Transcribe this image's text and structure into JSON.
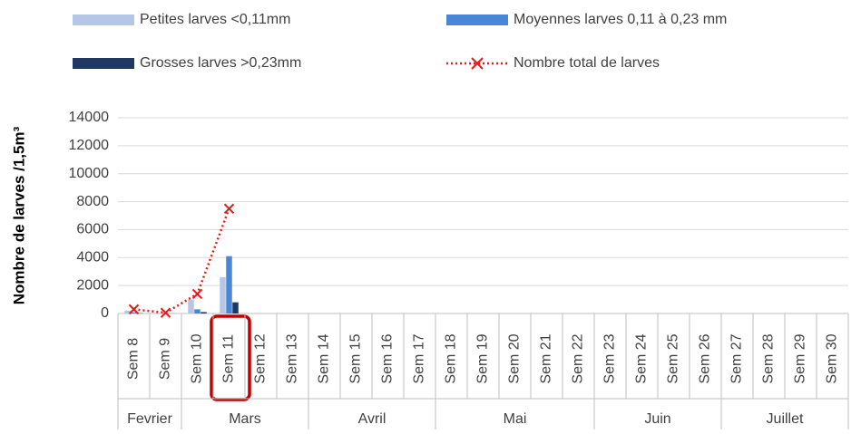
{
  "chart_data": {
    "type": "bar",
    "ylabel": "Nombre de larves /1,5m³",
    "categories": [
      "Sem 8",
      "Sem 9",
      "Sem 10",
      "Sem 11",
      "Sem 12",
      "Sem 13",
      "Sem 14",
      "Sem 15",
      "Sem 16",
      "Sem 17",
      "Sem 18",
      "Sem 19",
      "Sem 20",
      "Sem 21",
      "Sem 22",
      "Sem 23",
      "Sem 24",
      "Sem 25",
      "Sem 26",
      "Sem 27",
      "Sem 28",
      "Sem 29",
      "Sem 30"
    ],
    "groups": [
      {
        "label": "Fevrier",
        "span": 2
      },
      {
        "label": "Mars",
        "span": 4
      },
      {
        "label": "Avril",
        "span": 4
      },
      {
        "label": "Mai",
        "span": 5
      },
      {
        "label": "Juin",
        "span": 4
      },
      {
        "label": "Juillet",
        "span": 4
      }
    ],
    "series": [
      {
        "name": "Petites larves <0,11mm",
        "color": "#b4c7e7",
        "values": [
          200,
          30,
          1000,
          2600,
          null,
          null,
          null,
          null,
          null,
          null,
          null,
          null,
          null,
          null,
          null,
          null,
          null,
          null,
          null,
          null,
          null,
          null,
          null
        ]
      },
      {
        "name": "Moyennes larves 0,11 à 0,23 mm",
        "color": "#4a86d8",
        "values": [
          80,
          15,
          300,
          4100,
          null,
          null,
          null,
          null,
          null,
          null,
          null,
          null,
          null,
          null,
          null,
          null,
          null,
          null,
          null,
          null,
          null,
          null,
          null
        ]
      },
      {
        "name": "Grosses larves >0,23mm",
        "color": "#1f3864",
        "values": [
          20,
          5,
          100,
          800,
          null,
          null,
          null,
          null,
          null,
          null,
          null,
          null,
          null,
          null,
          null,
          null,
          null,
          null,
          null,
          null,
          null,
          null,
          null
        ]
      },
      {
        "name": "Nombre total de larves",
        "type": "line",
        "color": "#e41a1c",
        "values": [
          300,
          50,
          1400,
          7500,
          null,
          null,
          null,
          null,
          null,
          null,
          null,
          null,
          null,
          null,
          null,
          null,
          null,
          null,
          null,
          null,
          null,
          null,
          null
        ]
      }
    ],
    "ylim": [
      0,
      14000
    ],
    "yticks": [
      0,
      2000,
      4000,
      6000,
      8000,
      10000,
      12000,
      14000
    ],
    "grid": true
  }
}
